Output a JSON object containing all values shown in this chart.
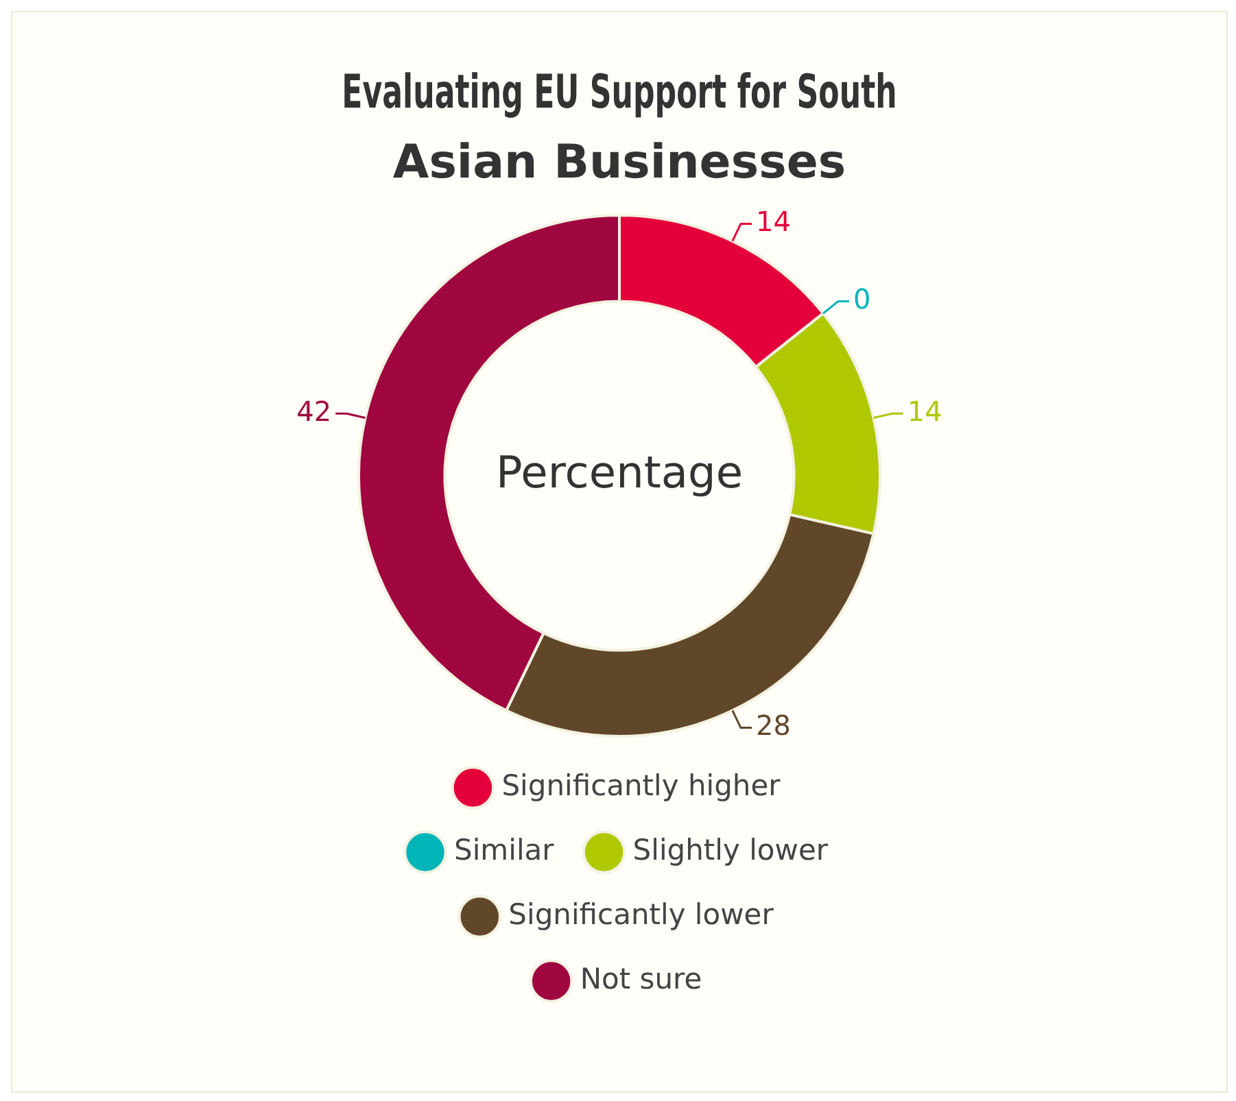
{
  "chart_data": {
    "type": "donut",
    "title": "Evaluating EU Support for South Asian Businesses",
    "categories": [
      "Significantly higher",
      "Similar",
      "Slightly lower",
      "Significantly lower",
      "Not sure"
    ],
    "values": [
      14,
      0,
      14,
      28,
      42
    ],
    "colors": [
      "#e4003a",
      "#00b5b8",
      "#b0c800",
      "#614729",
      "#a0063f"
    ],
    "annotations": [
      "Percentage"
    ],
    "value_labels": [
      "14",
      "0",
      "14",
      "28",
      "42"
    ],
    "legend": "bottom"
  }
}
